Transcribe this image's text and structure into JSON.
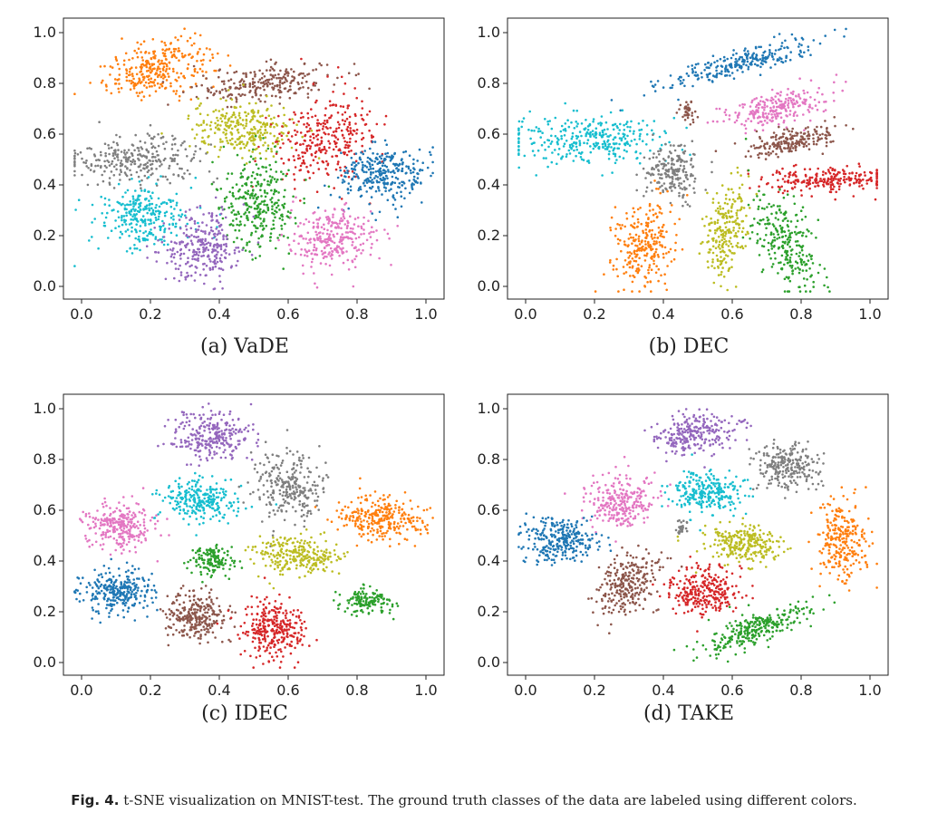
{
  "colors": {
    "blue": "#1f77b4",
    "orange": "#ff7f0e",
    "green": "#2ca02c",
    "red": "#d62728",
    "purple": "#9467bd",
    "brown": "#8c564b",
    "pink": "#e377c2",
    "gray": "#7f7f7f",
    "olive": "#bcbd22",
    "cyan": "#17becf"
  },
  "caption": {
    "label": "Fig. 4.",
    "text": "t-SNE visualization on MNIST-test. The ground truth classes of the data are labeled using different colors."
  },
  "chart_data": [
    {
      "type": "scatter",
      "subtitle": "(a) VaDE",
      "xlim": [
        0,
        1
      ],
      "ylim": [
        0,
        1
      ],
      "xticks": [
        "0.0",
        "0.2",
        "0.4",
        "0.6",
        "0.8",
        "1.0"
      ],
      "yticks": [
        "0.0",
        "0.2",
        "0.4",
        "0.6",
        "0.8",
        "1.0"
      ],
      "grid": false,
      "clusters": [
        {
          "color": "orange",
          "cx": 0.22,
          "cy": 0.86,
          "sx": 0.08,
          "sy": 0.05,
          "angle": 25,
          "n": 300
        },
        {
          "color": "brown",
          "cx": 0.53,
          "cy": 0.8,
          "sx": 0.1,
          "sy": 0.035,
          "angle": 8,
          "n": 240
        },
        {
          "color": "olive",
          "cx": 0.47,
          "cy": 0.62,
          "sx": 0.075,
          "sy": 0.055,
          "angle": 0,
          "n": 280
        },
        {
          "color": "red",
          "cx": 0.71,
          "cy": 0.58,
          "sx": 0.07,
          "sy": 0.09,
          "angle": -30,
          "n": 300
        },
        {
          "color": "gray",
          "cx": 0.16,
          "cy": 0.5,
          "sx": 0.1,
          "sy": 0.045,
          "angle": 0,
          "n": 280
        },
        {
          "color": "blue",
          "cx": 0.88,
          "cy": 0.44,
          "sx": 0.065,
          "sy": 0.055,
          "angle": 0,
          "n": 300
        },
        {
          "color": "green",
          "cx": 0.51,
          "cy": 0.33,
          "sx": 0.055,
          "sy": 0.09,
          "angle": 0,
          "n": 300
        },
        {
          "color": "cyan",
          "cx": 0.18,
          "cy": 0.28,
          "sx": 0.065,
          "sy": 0.065,
          "angle": 0,
          "n": 280
        },
        {
          "color": "purple",
          "cx": 0.35,
          "cy": 0.15,
          "sx": 0.06,
          "sy": 0.07,
          "angle": 0,
          "n": 280
        },
        {
          "color": "pink",
          "cx": 0.73,
          "cy": 0.19,
          "sx": 0.065,
          "sy": 0.055,
          "angle": 0,
          "n": 280
        }
      ]
    },
    {
      "type": "scatter",
      "subtitle": "(b) DEC",
      "xlim": [
        0,
        1
      ],
      "ylim": [
        0,
        1
      ],
      "xticks": [
        "0.0",
        "0.2",
        "0.4",
        "0.6",
        "0.8",
        "1.0"
      ],
      "yticks": [
        "0.0",
        "0.2",
        "0.4",
        "0.6",
        "0.8",
        "1.0"
      ],
      "grid": false,
      "clusters": [
        {
          "color": "blue",
          "cx": 0.62,
          "cy": 0.88,
          "sx": 0.12,
          "sy": 0.025,
          "angle": 20,
          "n": 260
        },
        {
          "color": "cyan",
          "cx": 0.17,
          "cy": 0.58,
          "sx": 0.12,
          "sy": 0.045,
          "angle": 0,
          "n": 320
        },
        {
          "color": "pink",
          "cx": 0.72,
          "cy": 0.7,
          "sx": 0.08,
          "sy": 0.03,
          "angle": 20,
          "n": 240
        },
        {
          "color": "brown",
          "cx": 0.78,
          "cy": 0.57,
          "sx": 0.07,
          "sy": 0.025,
          "angle": 15,
          "n": 200
        },
        {
          "color": "gray",
          "cx": 0.43,
          "cy": 0.45,
          "sx": 0.04,
          "sy": 0.055,
          "angle": 0,
          "n": 200
        },
        {
          "color": "red",
          "cx": 0.87,
          "cy": 0.42,
          "sx": 0.1,
          "sy": 0.025,
          "angle": 0,
          "n": 240
        },
        {
          "color": "olive",
          "cx": 0.58,
          "cy": 0.22,
          "sx": 0.03,
          "sy": 0.09,
          "angle": -10,
          "n": 240
        },
        {
          "color": "green",
          "cx": 0.75,
          "cy": 0.19,
          "sx": 0.04,
          "sy": 0.1,
          "angle": 20,
          "n": 260
        },
        {
          "color": "orange",
          "cx": 0.34,
          "cy": 0.16,
          "sx": 0.045,
          "sy": 0.09,
          "angle": -15,
          "n": 260
        },
        {
          "color": "brown",
          "cx": 0.47,
          "cy": 0.69,
          "sx": 0.012,
          "sy": 0.02,
          "angle": 0,
          "n": 40
        }
      ]
    },
    {
      "type": "scatter",
      "subtitle": "(c) IDEC",
      "xlim": [
        0,
        1
      ],
      "ylim": [
        0,
        1
      ],
      "xticks": [
        "0.0",
        "0.2",
        "0.4",
        "0.6",
        "0.8",
        "1.0"
      ],
      "yticks": [
        "0.0",
        "0.2",
        "0.4",
        "0.6",
        "0.8",
        "1.0"
      ],
      "grid": false,
      "clusters": [
        {
          "color": "purple",
          "cx": 0.38,
          "cy": 0.89,
          "sx": 0.06,
          "sy": 0.05,
          "angle": 0,
          "n": 280
        },
        {
          "color": "gray",
          "cx": 0.6,
          "cy": 0.69,
          "sx": 0.05,
          "sy": 0.07,
          "angle": 0,
          "n": 260
        },
        {
          "color": "cyan",
          "cx": 0.34,
          "cy": 0.64,
          "sx": 0.055,
          "sy": 0.04,
          "angle": 0,
          "n": 260
        },
        {
          "color": "pink",
          "cx": 0.11,
          "cy": 0.54,
          "sx": 0.05,
          "sy": 0.045,
          "angle": 0,
          "n": 260
        },
        {
          "color": "orange",
          "cx": 0.87,
          "cy": 0.57,
          "sx": 0.065,
          "sy": 0.045,
          "angle": -10,
          "n": 280
        },
        {
          "color": "green",
          "cx": 0.38,
          "cy": 0.4,
          "sx": 0.03,
          "sy": 0.03,
          "angle": 0,
          "n": 140
        },
        {
          "color": "olive",
          "cx": 0.63,
          "cy": 0.42,
          "sx": 0.06,
          "sy": 0.038,
          "angle": 0,
          "n": 260
        },
        {
          "color": "blue",
          "cx": 0.11,
          "cy": 0.28,
          "sx": 0.05,
          "sy": 0.045,
          "angle": 0,
          "n": 280
        },
        {
          "color": "brown",
          "cx": 0.33,
          "cy": 0.18,
          "sx": 0.045,
          "sy": 0.045,
          "angle": 0,
          "n": 260
        },
        {
          "color": "red",
          "cx": 0.56,
          "cy": 0.13,
          "sx": 0.045,
          "sy": 0.06,
          "angle": 0,
          "n": 300
        },
        {
          "color": "green",
          "cx": 0.83,
          "cy": 0.24,
          "sx": 0.035,
          "sy": 0.025,
          "angle": 0,
          "n": 140
        }
      ]
    },
    {
      "type": "scatter",
      "subtitle": "(d) TAKE",
      "xlim": [
        0,
        1
      ],
      "ylim": [
        0,
        1
      ],
      "xticks": [
        "0.0",
        "0.2",
        "0.4",
        "0.6",
        "0.8",
        "1.0"
      ],
      "yticks": [
        "0.0",
        "0.2",
        "0.4",
        "0.6",
        "0.8",
        "1.0"
      ],
      "grid": false,
      "clusters": [
        {
          "color": "purple",
          "cx": 0.49,
          "cy": 0.9,
          "sx": 0.06,
          "sy": 0.04,
          "angle": 10,
          "n": 260
        },
        {
          "color": "gray",
          "cx": 0.76,
          "cy": 0.77,
          "sx": 0.045,
          "sy": 0.045,
          "angle": 0,
          "n": 240
        },
        {
          "color": "pink",
          "cx": 0.27,
          "cy": 0.63,
          "sx": 0.05,
          "sy": 0.055,
          "angle": -20,
          "n": 260
        },
        {
          "color": "cyan",
          "cx": 0.52,
          "cy": 0.67,
          "sx": 0.055,
          "sy": 0.04,
          "angle": 0,
          "n": 260
        },
        {
          "color": "blue",
          "cx": 0.1,
          "cy": 0.48,
          "sx": 0.055,
          "sy": 0.045,
          "angle": -10,
          "n": 280
        },
        {
          "color": "olive",
          "cx": 0.64,
          "cy": 0.47,
          "sx": 0.055,
          "sy": 0.038,
          "angle": 0,
          "n": 260
        },
        {
          "color": "orange",
          "cx": 0.92,
          "cy": 0.48,
          "sx": 0.035,
          "sy": 0.08,
          "angle": 0,
          "n": 260
        },
        {
          "color": "brown",
          "cx": 0.3,
          "cy": 0.31,
          "sx": 0.04,
          "sy": 0.065,
          "angle": -25,
          "n": 260
        },
        {
          "color": "red",
          "cx": 0.52,
          "cy": 0.28,
          "sx": 0.05,
          "sy": 0.045,
          "angle": 0,
          "n": 280
        },
        {
          "color": "green",
          "cx": 0.66,
          "cy": 0.13,
          "sx": 0.09,
          "sy": 0.03,
          "angle": 28,
          "n": 280
        },
        {
          "color": "gray",
          "cx": 0.45,
          "cy": 0.53,
          "sx": 0.01,
          "sy": 0.015,
          "angle": 0,
          "n": 25
        }
      ]
    }
  ]
}
